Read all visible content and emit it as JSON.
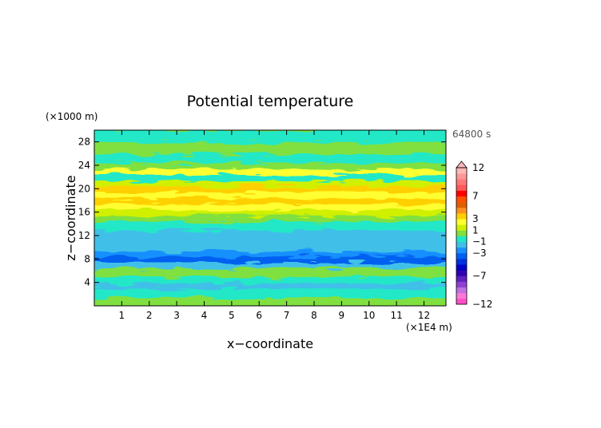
{
  "chart_data": {
    "type": "heatmap",
    "title": "Potential temperature",
    "xlabel": "x−coordinate",
    "ylabel": "z−coordinate",
    "x_unit": "(×1E4 m)",
    "y_unit": "(×1000 m)",
    "time_label": "64800 s",
    "xlim": [
      0,
      12.8
    ],
    "ylim": [
      0,
      30
    ],
    "x_ticks": [
      "1",
      "2",
      "3",
      "4",
      "5",
      "6",
      "7",
      "8",
      "9",
      "10",
      "11",
      "12"
    ],
    "y_ticks": [
      "4",
      "8",
      "12",
      "16",
      "20",
      "24",
      "28"
    ],
    "colorbar": {
      "labels": [
        "12",
        "7",
        "3",
        "1",
        "−1",
        "−3",
        "−7",
        "−12"
      ],
      "levels": [
        -12,
        -11,
        -10,
        -9,
        -8,
        -7,
        -6,
        -5,
        -4,
        -3,
        -2,
        -1,
        0,
        1,
        2,
        3,
        4,
        5,
        6,
        7,
        8,
        9,
        10,
        11,
        12
      ],
      "colors": [
        "#ff4fc8",
        "#ff78d8",
        "#c070e0",
        "#9040d0",
        "#6020c0",
        "#3000b0",
        "#0000c8",
        "#0030e0",
        "#0060f0",
        "#1890ff",
        "#40c0e8",
        "#20e8c8",
        "#80e040",
        "#d0f000",
        "#ffff30",
        "#ffd000",
        "#ff9020",
        "#e06000",
        "#ff5000",
        "#ff0000",
        "#ff5858",
        "#ff7878",
        "#ff9898",
        "#ffb8b8"
      ]
    },
    "bands": [
      {
        "z": [
          0,
          1.5
        ],
        "value": 0.3
      },
      {
        "z": [
          1.5,
          3
        ],
        "value": -0.2
      },
      {
        "z": [
          3,
          4
        ],
        "value": -1.8
      },
      {
        "z": [
          4,
          5
        ],
        "value": -0.6
      },
      {
        "z": [
          5,
          6.5
        ],
        "value": 0.4
      },
      {
        "z": [
          6.5,
          7.5
        ],
        "value": -1.6
      },
      {
        "z": [
          7.5,
          8.5
        ],
        "value": -3.2
      },
      {
        "z": [
          8.5,
          9.5
        ],
        "value": -2.8
      },
      {
        "z": [
          9.5,
          10.5
        ],
        "value": -1.8
      },
      {
        "z": [
          10.5,
          12
        ],
        "value": -1.3
      },
      {
        "z": [
          12,
          13
        ],
        "value": -1.6
      },
      {
        "z": [
          13,
          14.5
        ],
        "value": -0.5
      },
      {
        "z": [
          14.5,
          15.5
        ],
        "value": 0.6
      },
      {
        "z": [
          15.5,
          16.5
        ],
        "value": 1.5
      },
      {
        "z": [
          16.5,
          17.5
        ],
        "value": 2.3
      },
      {
        "z": [
          17.5,
          18.5
        ],
        "value": 3.4
      },
      {
        "z": [
          18.5,
          19.5
        ],
        "value": 2.0
      },
      {
        "z": [
          19.5,
          20.5
        ],
        "value": 3.2
      },
      {
        "z": [
          20.5,
          21.5
        ],
        "value": 1.2
      },
      {
        "z": [
          21.5,
          22.5
        ],
        "value": -0.2
      },
      {
        "z": [
          22.5,
          23.5
        ],
        "value": 2.6
      },
      {
        "z": [
          23.5,
          24.5
        ],
        "value": 0.4
      },
      {
        "z": [
          24.5,
          26
        ],
        "value": -0.5
      },
      {
        "z": [
          26,
          28
        ],
        "value": 0.2
      },
      {
        "z": [
          28,
          30
        ],
        "value": -0.6
      }
    ]
  }
}
